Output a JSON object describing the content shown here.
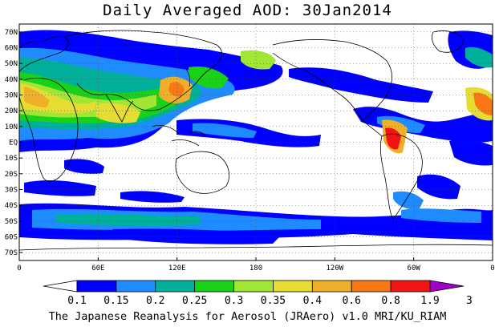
{
  "title": "Daily Averaged AOD: 30Jan2014",
  "footer": "The Japanese Reanalysis for Aerosol (JRAero) v1.0 MRI/KU_RIAM",
  "map": {
    "lat_labels": [
      "70N",
      "60N",
      "50N",
      "40N",
      "30N",
      "20N",
      "10N",
      "EQ",
      "10S",
      "20S",
      "30S",
      "40S",
      "50S",
      "60S",
      "70S"
    ],
    "lon_labels": [
      "0",
      "60E",
      "120E",
      "180",
      "120W",
      "60W",
      "0"
    ],
    "grid_lines": "dotted"
  },
  "colorbar": {
    "labels": [
      "0.1",
      "0.15",
      "0.2",
      "0.25",
      "0.3",
      "0.35",
      "0.4",
      "0.6",
      "0.8",
      "1.9",
      "3"
    ],
    "colors": [
      "#ffffff",
      "#0000ff",
      "#1e8cff",
      "#00b09a",
      "#18d218",
      "#a0e632",
      "#e6dc32",
      "#f0af28",
      "#fa7814",
      "#f01414",
      "#a000c8"
    ]
  },
  "palette": {
    "land_outline": "#000000",
    "background": "#ffffff"
  }
}
